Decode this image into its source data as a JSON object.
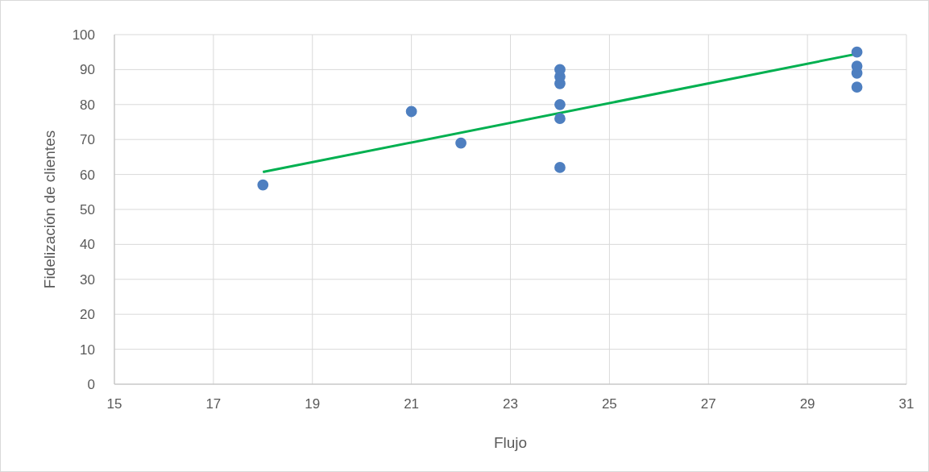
{
  "chart_data": {
    "type": "scatter",
    "xlabel": "Flujo",
    "ylabel": "Fidelización de clientes",
    "xlim": [
      15,
      31
    ],
    "xticks": [
      15,
      17,
      19,
      21,
      23,
      25,
      27,
      29,
      31
    ],
    "ylim": [
      0,
      100
    ],
    "yticks": [
      0,
      10,
      20,
      30,
      40,
      50,
      60,
      70,
      80,
      90,
      100
    ],
    "grid": true,
    "marker": "circle",
    "series": [
      {
        "color": "#4e7fc0",
        "x": [
          18,
          21,
          22,
          24,
          24,
          24,
          24,
          24,
          24,
          30,
          30,
          30,
          30
        ],
        "values": [
          57,
          78,
          69,
          62,
          76,
          80,
          86,
          88,
          90,
          85,
          89,
          91,
          95
        ]
      },
      {
        "type": "line",
        "marker": "none",
        "color": "#00b050",
        "line_style": "solid",
        "x": [
          18,
          30
        ],
        "values": [
          60.7,
          94.5
        ]
      }
    ]
  }
}
